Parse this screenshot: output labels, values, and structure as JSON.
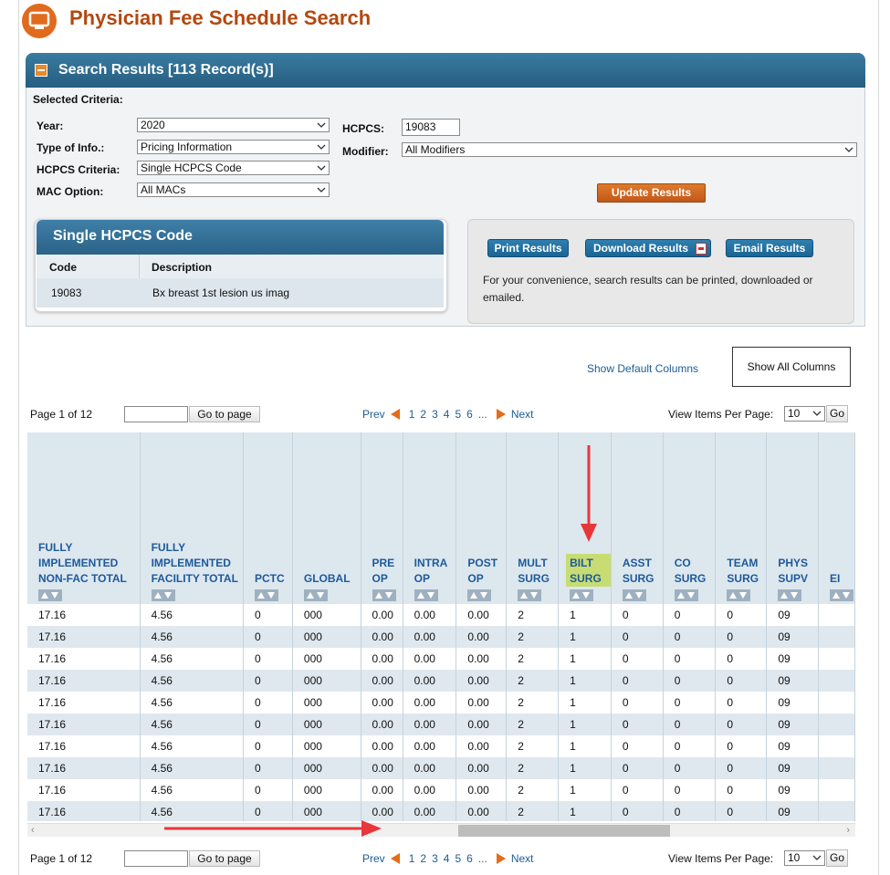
{
  "page_title": "Physician Fee Schedule Search",
  "results_panel": {
    "title": "Search Results [113 Record(s)]",
    "selected_criteria_label": "Selected Criteria:",
    "year": {
      "label": "Year:",
      "value": "2020"
    },
    "type_of_info": {
      "label": "Type of Info.:",
      "value": "Pricing Information"
    },
    "hcpcs_criteria": {
      "label": "HCPCS Criteria:",
      "value": "Single HCPCS Code"
    },
    "mac_option": {
      "label": "MAC Option:",
      "value": "All MACs"
    },
    "hcpcs": {
      "label": "HCPCS:",
      "value": "19083"
    },
    "modifier": {
      "label": "Modifier:",
      "value": "All Modifiers"
    },
    "update_button": "Update Results"
  },
  "single_hcpcs": {
    "title": "Single HCPCS Code",
    "col_code": "Code",
    "col_description": "Description",
    "code": "19083",
    "description": "Bx breast 1st lesion us imag"
  },
  "actions": {
    "print": "Print Results",
    "download": "Download Results",
    "email": "Email Results",
    "note": "For your convenience, search results can be printed, downloaded or emailed."
  },
  "column_toggle": {
    "default": "Show Default Columns",
    "all": "Show All Columns"
  },
  "pagination": {
    "page_info": "Page 1 of 12",
    "goto": "Go to page",
    "prev": "Prev",
    "pages": [
      "1",
      "2",
      "3",
      "4",
      "5",
      "6"
    ],
    "ellipsis": "...",
    "next": "Next",
    "per_page_label": "View Items Per Page:",
    "per_page_value": "10",
    "go": "Go"
  },
  "table": {
    "columns": [
      "FULLY IMPLEMENTED NON-FAC TOTAL",
      "FULLY IMPLEMENTED FACILITY TOTAL",
      "PCTC",
      "GLOBAL",
      "PRE OP",
      "INTRA OP",
      "POST OP",
      "MULT SURG",
      "BILT SURG",
      "ASST SURG",
      "CO SURG",
      "TEAM SURG",
      "PHYS SUPV",
      "EI"
    ],
    "rows": [
      [
        "17.16",
        "4.56",
        "0",
        "000",
        "0.00",
        "0.00",
        "0.00",
        "2",
        "1",
        "0",
        "0",
        "0",
        "09",
        ""
      ],
      [
        "17.16",
        "4.56",
        "0",
        "000",
        "0.00",
        "0.00",
        "0.00",
        "2",
        "1",
        "0",
        "0",
        "0",
        "09",
        ""
      ],
      [
        "17.16",
        "4.56",
        "0",
        "000",
        "0.00",
        "0.00",
        "0.00",
        "2",
        "1",
        "0",
        "0",
        "0",
        "09",
        ""
      ],
      [
        "17.16",
        "4.56",
        "0",
        "000",
        "0.00",
        "0.00",
        "0.00",
        "2",
        "1",
        "0",
        "0",
        "0",
        "09",
        ""
      ],
      [
        "17.16",
        "4.56",
        "0",
        "000",
        "0.00",
        "0.00",
        "0.00",
        "2",
        "1",
        "0",
        "0",
        "0",
        "09",
        ""
      ],
      [
        "17.16",
        "4.56",
        "0",
        "000",
        "0.00",
        "0.00",
        "0.00",
        "2",
        "1",
        "0",
        "0",
        "0",
        "09",
        ""
      ],
      [
        "17.16",
        "4.56",
        "0",
        "000",
        "0.00",
        "0.00",
        "0.00",
        "2",
        "1",
        "0",
        "0",
        "0",
        "09",
        ""
      ],
      [
        "17.16",
        "4.56",
        "0",
        "000",
        "0.00",
        "0.00",
        "0.00",
        "2",
        "1",
        "0",
        "0",
        "0",
        "09",
        ""
      ],
      [
        "17.16",
        "4.56",
        "0",
        "000",
        "0.00",
        "0.00",
        "0.00",
        "2",
        "1",
        "0",
        "0",
        "0",
        "09",
        ""
      ],
      [
        "17.16",
        "4.56",
        "0",
        "000",
        "0.00",
        "0.00",
        "0.00",
        "2",
        "1",
        "0",
        "0",
        "0",
        "09",
        ""
      ]
    ],
    "highlighted_column": "BILT SURG",
    "highlight_color": "#c7dd73"
  },
  "annotation_color": "#e8363a",
  "icons": {
    "app": "monitor-icon",
    "collapse": "minus-icon",
    "download": "pdf-icon",
    "sort": "sort-arrows-icon"
  }
}
